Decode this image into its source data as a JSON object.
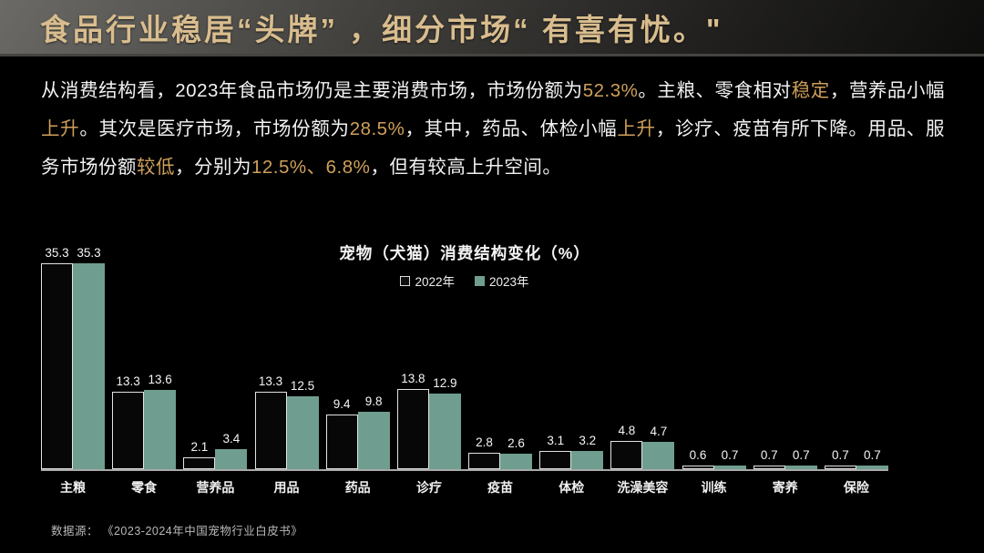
{
  "slide": {
    "header": {
      "title": "食品行业稳居“头牌” ，细分市场“ 有喜有忧。\""
    },
    "paragraph": {
      "segments": [
        {
          "text": "从消费结构看，2023年食品市场仍是主要消费市场，市场份额为",
          "highlight": false
        },
        {
          "text": "52.3%",
          "highlight": true
        },
        {
          "text": "。主粮、零食相对",
          "highlight": false
        },
        {
          "text": "稳定",
          "highlight": true
        },
        {
          "text": "，营养品小幅",
          "highlight": false
        },
        {
          "text": "上升",
          "highlight": true
        },
        {
          "text": "。其次是医疗市场，市场份额为",
          "highlight": false
        },
        {
          "text": "28.5%",
          "highlight": true
        },
        {
          "text": "，其中，药品、体检小幅",
          "highlight": false
        },
        {
          "text": "上升",
          "highlight": true
        },
        {
          "text": "，诊疗、疫苗有所下降。用品、服务市场份额",
          "highlight": false
        },
        {
          "text": "较低",
          "highlight": true
        },
        {
          "text": "，分别为",
          "highlight": false
        },
        {
          "text": "12.5%、6.8%",
          "highlight": true
        },
        {
          "text": "，但有较高上升空间。",
          "highlight": false
        }
      ]
    },
    "source": "数据源： 《2023-2024年中国宠物行业白皮书》"
  },
  "colors": {
    "title_gold": "#d9bd8e",
    "paragraph_highlight_gold": "#cfa05a",
    "bar_2023_teal": "#6f9e90",
    "bar_2022_fill": "#070707",
    "bar_2022_border": "#e3e3e3",
    "background": "#000000"
  },
  "chart_data": {
    "type": "bar",
    "title": "宠物（犬猫）消费结构变化（%）",
    "categories": [
      "主粮",
      "零食",
      "营养品",
      "用品",
      "药品",
      "诊疗",
      "疫苗",
      "体检",
      "洗澡美容",
      "训练",
      "寄养",
      "保险"
    ],
    "series": [
      {
        "name": "2022年",
        "values": [
          35.3,
          13.3,
          2.1,
          13.3,
          9.4,
          13.8,
          2.8,
          3.1,
          4.8,
          0.6,
          0.7,
          0.7
        ]
      },
      {
        "name": "2023年",
        "values": [
          35.3,
          13.6,
          3.4,
          12.5,
          9.8,
          12.9,
          2.6,
          3.2,
          4.7,
          0.7,
          0.7,
          0.7
        ]
      }
    ],
    "xlabel": "",
    "ylabel": "",
    "ylim": [
      0,
      38
    ],
    "grid": false,
    "legend_position": "top",
    "value_labels": true
  }
}
